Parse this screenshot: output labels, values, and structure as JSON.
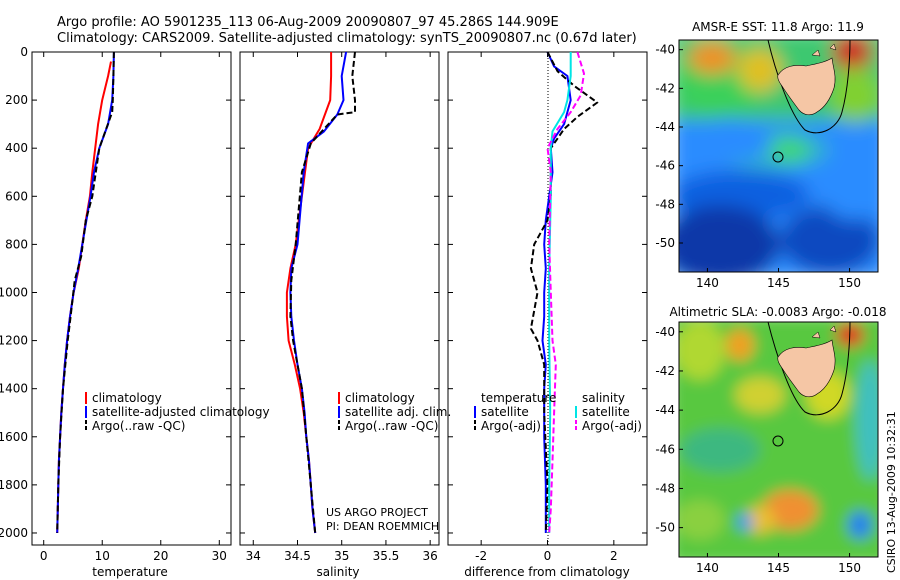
{
  "header": {
    "line1": "Argo profile: AO 5901235_113 06-Aug-2009 20090807_97 45.286S 144.909E",
    "line2": "Climatology: CARS2009. Satellite-adjusted climatology: synTS_20090807.nc (0.67d later)"
  },
  "colors": {
    "climatology": "#ff0000",
    "satellite": "#0000ff",
    "argo": "#000000",
    "sal_satellite": "#00e5e5",
    "sal_argo": "#ff00ff",
    "land": "#f5c6a5"
  },
  "footer": {
    "project_line1": "US ARGO PROJECT",
    "project_line2": "PI: DEAN ROEMMICH",
    "stamp": "CSIRO 13-Aug-2009 10:32:31"
  },
  "chart_data": [
    {
      "id": "temperature",
      "type": "line",
      "xlabel": "temperature",
      "ylabel": "",
      "xlim": [
        -2,
        32
      ],
      "ylim": [
        2050,
        0
      ],
      "xticks": [
        0,
        10,
        20,
        30
      ],
      "yticks": [
        0,
        200,
        400,
        600,
        800,
        1000,
        1200,
        1400,
        1600,
        1800,
        2000
      ],
      "legend": {
        "placement": "middle-right",
        "entries": [
          "climatology",
          "satellite-adjusted climatology",
          "Argo(..raw -QC)"
        ]
      },
      "series": [
        {
          "name": "climatology",
          "style": "solid",
          "color": "#ff0000",
          "points": [
            [
              11.5,
              40
            ],
            [
              11,
              100
            ],
            [
              10,
              200
            ],
            [
              9.3,
              300
            ],
            [
              8.8,
              400
            ],
            [
              8.3,
              500
            ],
            [
              7.9,
              600
            ],
            [
              7.2,
              700
            ],
            [
              6.6,
              800
            ],
            [
              6.0,
              900
            ],
            [
              5.1,
              1000
            ],
            [
              4.5,
              1100
            ],
            [
              4.0,
              1200
            ],
            [
              3.6,
              1300
            ],
            [
              3.3,
              1400
            ],
            [
              3.0,
              1500
            ],
            [
              2.8,
              1600
            ],
            [
              2.6,
              1700
            ],
            [
              2.5,
              1800
            ],
            [
              2.4,
              1900
            ],
            [
              2.3,
              2000
            ]
          ]
        },
        {
          "name": "satellite-adjusted climatology",
          "style": "solid",
          "color": "#0000ff",
          "points": [
            [
              12.0,
              0
            ],
            [
              11.9,
              100
            ],
            [
              11.7,
              200
            ],
            [
              11.0,
              300
            ],
            [
              9.5,
              400
            ],
            [
              8.6,
              500
            ],
            [
              8.0,
              600
            ],
            [
              7.3,
              700
            ],
            [
              6.6,
              800
            ],
            [
              5.9,
              900
            ],
            [
              5.1,
              1000
            ],
            [
              4.5,
              1100
            ],
            [
              4.0,
              1200
            ],
            [
              3.6,
              1300
            ],
            [
              3.3,
              1400
            ],
            [
              3.0,
              1500
            ],
            [
              2.8,
              1600
            ],
            [
              2.6,
              1700
            ],
            [
              2.5,
              1800
            ],
            [
              2.4,
              1900
            ],
            [
              2.3,
              2000
            ]
          ]
        },
        {
          "name": "Argo(..raw -QC)",
          "style": "dashed",
          "color": "#000000",
          "points": [
            [
              12.0,
              0
            ],
            [
              11.9,
              100
            ],
            [
              11.8,
              200
            ],
            [
              11.7,
              250
            ],
            [
              9.5,
              400
            ],
            [
              8.3,
              600
            ],
            [
              7.2,
              700
            ],
            [
              6.4,
              850
            ],
            [
              5.3,
              950
            ],
            [
              4.6,
              1100
            ],
            [
              4.1,
              1200
            ],
            [
              3.3,
              1400
            ],
            [
              2.8,
              1600
            ],
            [
              2.5,
              1800
            ],
            [
              2.3,
              2000
            ]
          ]
        }
      ]
    },
    {
      "id": "salinity",
      "type": "line",
      "xlabel": "salinity",
      "ylabel": "",
      "xlim": [
        33.85,
        36.1
      ],
      "ylim": [
        2050,
        0
      ],
      "xticks": [
        34,
        34.5,
        35,
        35.5,
        36
      ],
      "xticklabels": [
        "34",
        "34.5",
        "35",
        "35.5",
        "36"
      ],
      "legend": {
        "placement": "middle-right",
        "entries": [
          "climatology",
          "satellite adj. clim.",
          "Argo(..raw -QC)"
        ]
      },
      "series": [
        {
          "name": "climatology",
          "style": "solid",
          "color": "#ff0000",
          "points": [
            [
              34.88,
              0
            ],
            [
              34.88,
              100
            ],
            [
              34.87,
              200
            ],
            [
              34.75,
              320
            ],
            [
              34.62,
              400
            ],
            [
              34.55,
              600
            ],
            [
              34.48,
              800
            ],
            [
              34.42,
              900
            ],
            [
              34.38,
              1000
            ],
            [
              34.38,
              1100
            ],
            [
              34.4,
              1200
            ],
            [
              34.47,
              1300
            ],
            [
              34.53,
              1400
            ],
            [
              34.57,
              1500
            ],
            [
              34.6,
              1600
            ],
            [
              34.63,
              1700
            ],
            [
              34.65,
              1800
            ],
            [
              34.67,
              1900
            ],
            [
              34.7,
              2000
            ]
          ]
        },
        {
          "name": "satellite adj. clim.",
          "style": "solid",
          "color": "#0000ff",
          "points": [
            [
              35.05,
              0
            ],
            [
              35.0,
              100
            ],
            [
              35.02,
              200
            ],
            [
              34.95,
              260
            ],
            [
              34.8,
              330
            ],
            [
              34.62,
              380
            ],
            [
              34.57,
              500
            ],
            [
              34.5,
              800
            ],
            [
              34.43,
              900
            ],
            [
              34.42,
              1000
            ],
            [
              34.43,
              1100
            ],
            [
              34.46,
              1200
            ],
            [
              34.5,
              1300
            ],
            [
              34.55,
              1400
            ],
            [
              34.58,
              1500
            ],
            [
              34.6,
              1600
            ],
            [
              34.63,
              1700
            ],
            [
              34.65,
              1800
            ],
            [
              34.67,
              1900
            ],
            [
              34.7,
              2000
            ]
          ]
        },
        {
          "name": "Argo(..raw -QC)",
          "style": "dashed",
          "color": "#000000",
          "points": [
            [
              35.15,
              0
            ],
            [
              35.12,
              100
            ],
            [
              35.15,
              200
            ],
            [
              35.15,
              250
            ],
            [
              34.95,
              260
            ],
            [
              34.65,
              380
            ],
            [
              34.55,
              500
            ],
            [
              34.48,
              800
            ],
            [
              34.43,
              950
            ],
            [
              34.42,
              1100
            ],
            [
              34.45,
              1200
            ],
            [
              34.5,
              1300
            ],
            [
              34.55,
              1400
            ],
            [
              34.6,
              1600
            ],
            [
              34.65,
              1800
            ],
            [
              34.7,
              2000
            ]
          ]
        }
      ]
    },
    {
      "id": "difference",
      "type": "line",
      "xlabel": "difference from climatology",
      "ylabel": "",
      "xlim": [
        -3,
        3
      ],
      "ylim": [
        2050,
        0
      ],
      "xticks": [
        -2,
        0,
        2
      ],
      "reference_line": 0,
      "legend": {
        "placement": "middle",
        "group_titles": [
          "temperature",
          "salinity"
        ],
        "entries": [
          "satellite",
          "Argo(-adj)",
          "satellite",
          "Argo(-adj)"
        ]
      },
      "series": [
        {
          "name": "satellite",
          "group": "temperature",
          "style": "solid",
          "color": "#0000ff",
          "points": [
            [
              0.0,
              0
            ],
            [
              0.2,
              60
            ],
            [
              0.6,
              100
            ],
            [
              0.7,
              200
            ],
            [
              0.5,
              300
            ],
            [
              0.2,
              360
            ],
            [
              0.1,
              400
            ],
            [
              0.15,
              500
            ],
            [
              0.05,
              600
            ],
            [
              -0.05,
              700
            ],
            [
              -0.1,
              800
            ],
            [
              -0.05,
              900
            ],
            [
              -0.1,
              1000
            ],
            [
              -0.1,
              1100
            ],
            [
              -0.15,
              1200
            ],
            [
              -0.05,
              1300
            ],
            [
              -0.1,
              1400
            ],
            [
              -0.1,
              1600
            ],
            [
              -0.05,
              1800
            ],
            [
              -0.05,
              2000
            ]
          ]
        },
        {
          "name": "Argo(-adj)",
          "group": "temperature",
          "style": "dashed",
          "color": "#000000",
          "points": [
            [
              0.0,
              0
            ],
            [
              0.3,
              80
            ],
            [
              0.8,
              140
            ],
            [
              1.5,
              210
            ],
            [
              0.9,
              270
            ],
            [
              0.5,
              320
            ],
            [
              0.1,
              400
            ],
            [
              0.1,
              600
            ],
            [
              0.0,
              700
            ],
            [
              -0.4,
              800
            ],
            [
              -0.5,
              900
            ],
            [
              -0.3,
              1000
            ],
            [
              -0.5,
              1150
            ],
            [
              -0.3,
              1200
            ],
            [
              -0.1,
              1300
            ],
            [
              -0.1,
              1500
            ],
            [
              0.0,
              1800
            ],
            [
              -0.05,
              2000
            ]
          ]
        },
        {
          "name": "satellite",
          "group": "salinity",
          "style": "solid",
          "color": "#00e5e5",
          "points": [
            [
              0.7,
              0
            ],
            [
              0.7,
              100
            ],
            [
              0.6,
              200
            ],
            [
              0.5,
              250
            ],
            [
              0.15,
              330
            ],
            [
              0.1,
              400
            ],
            [
              0.1,
              600
            ],
            [
              0.05,
              900
            ],
            [
              0.05,
              1200
            ],
            [
              0.08,
              1500
            ],
            [
              0.05,
              1800
            ],
            [
              0.05,
              2000
            ]
          ]
        },
        {
          "name": "Argo(-adj)",
          "group": "salinity",
          "style": "dashed",
          "color": "#ff00ff",
          "points": [
            [
              0.9,
              0
            ],
            [
              1.1,
              90
            ],
            [
              1.0,
              180
            ],
            [
              0.7,
              250
            ],
            [
              0.3,
              320
            ],
            [
              0.0,
              400
            ],
            [
              0.1,
              500
            ],
            [
              0.05,
              800
            ],
            [
              0.1,
              1000
            ],
            [
              0.15,
              1200
            ],
            [
              0.25,
              1300
            ],
            [
              0.2,
              1500
            ],
            [
              0.15,
              1700
            ],
            [
              0.1,
              1900
            ],
            [
              0.05,
              2000
            ]
          ]
        }
      ]
    },
    {
      "id": "sst_map",
      "type": "heatmap",
      "title": "AMSR-E SST: 11.8 Argo: 11.9",
      "xlim": [
        138,
        152
      ],
      "ylim": [
        -51.5,
        -39.5
      ],
      "xticks": [
        140,
        145,
        150
      ],
      "yticks": [
        -40,
        -42,
        -44,
        -46,
        -48,
        -50
      ],
      "marker": {
        "lon": 144.909,
        "lat": -45.286,
        "shape": "circle"
      }
    },
    {
      "id": "sla_map",
      "type": "heatmap",
      "title": "Altimetric SLA: -0.0083 Argo: -0.018",
      "xlim": [
        138,
        152
      ],
      "ylim": [
        -51.5,
        -39.5
      ],
      "xticks": [
        140,
        145,
        150
      ],
      "yticks": [
        -40,
        -42,
        -44,
        -46,
        -48,
        -50
      ],
      "marker": {
        "lon": 144.909,
        "lat": -45.286,
        "shape": "circle"
      }
    }
  ]
}
